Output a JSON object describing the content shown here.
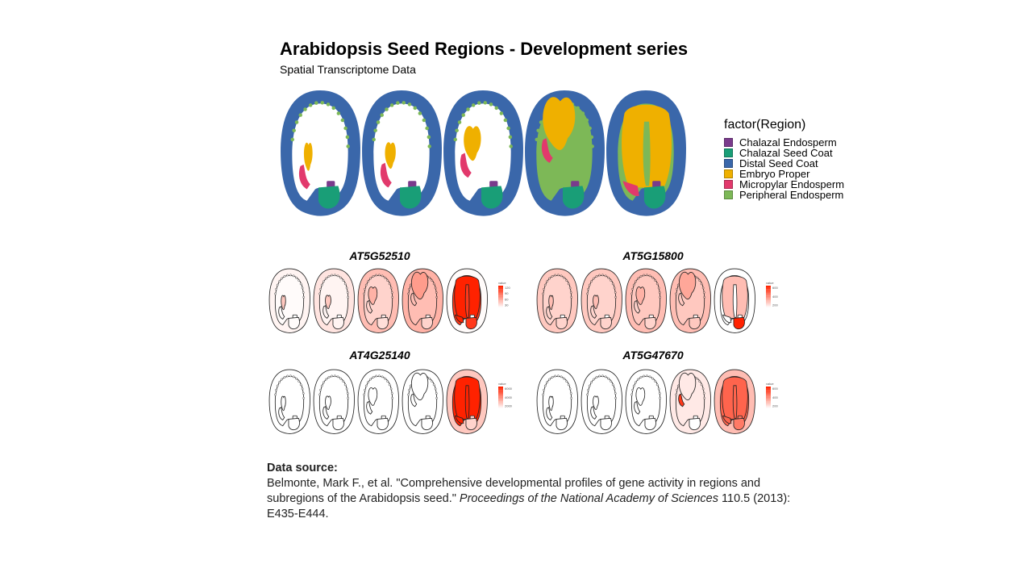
{
  "title": "Arabidopsis Seed Regions - Development series",
  "subtitle": "Spatial Transcriptome  Data",
  "legend": {
    "title": "factor(Region)",
    "items": [
      {
        "label": "Chalazal Endosperm",
        "color": "#7a3b8c"
      },
      {
        "label": "Chalazal Seed Coat",
        "color": "#199e77"
      },
      {
        "label": "Distal Seed Coat",
        "color": "#3a67aa"
      },
      {
        "label": "Embryo Proper",
        "color": "#efb000"
      },
      {
        "label": "Micropylar Endosperm",
        "color": "#e2396c"
      },
      {
        "label": "Peripheral Endosperm",
        "color": "#7db857"
      }
    ]
  },
  "genes": [
    {
      "name": "AT5G52510",
      "colorbar_title": "value",
      "ticks": [
        "120",
        "90",
        "60",
        "30"
      ],
      "levels": [
        [
          0.05,
          0.02,
          0.25,
          0.02,
          0.0,
          0.02
        ],
        [
          0.12,
          0.05,
          0.25,
          0.05,
          0.0,
          0.05
        ],
        [
          0.3,
          0.2,
          0.35,
          0.2,
          0.08,
          0.15
        ],
        [
          0.35,
          0.3,
          0.45,
          0.3,
          0.1,
          0.2
        ],
        [
          0.02,
          0.9,
          1.0,
          1.0,
          0.0,
          0.9
        ]
      ]
    },
    {
      "name": "AT5G15800",
      "colorbar_title": "value",
      "ticks": [
        "600",
        "400",
        "200"
      ],
      "levels": [
        [
          0.25,
          0.2,
          0.3,
          0.2,
          0.0,
          0.2
        ],
        [
          0.25,
          0.2,
          0.3,
          0.2,
          0.0,
          0.2
        ],
        [
          0.3,
          0.25,
          0.35,
          0.2,
          0.05,
          0.2
        ],
        [
          0.3,
          0.25,
          0.4,
          0.25,
          0.05,
          0.25
        ],
        [
          0.0,
          0.0,
          0.3,
          0.0,
          0.0,
          1.0
        ]
      ]
    },
    {
      "name": "AT4G25140",
      "colorbar_title": "value",
      "ticks": [
        "6000",
        "4000",
        "2000"
      ],
      "levels": [
        [
          0.0,
          0.0,
          0.0,
          0.0,
          0.0,
          0.0
        ],
        [
          0.0,
          0.0,
          0.0,
          0.0,
          0.0,
          0.0
        ],
        [
          0.0,
          0.0,
          0.0,
          0.0,
          0.0,
          0.0
        ],
        [
          0.0,
          0.0,
          0.0,
          0.0,
          0.0,
          0.0
        ],
        [
          0.25,
          1.0,
          1.0,
          1.0,
          0.2,
          0.2
        ]
      ]
    },
    {
      "name": "AT5G47670",
      "colorbar_title": "value",
      "ticks": [
        "600",
        "400",
        "200"
      ],
      "levels": [
        [
          0.0,
          0.0,
          0.0,
          0.0,
          0.0,
          0.0
        ],
        [
          0.0,
          0.0,
          0.0,
          0.0,
          0.0,
          0.0
        ],
        [
          0.0,
          0.0,
          0.0,
          0.0,
          0.0,
          0.0
        ],
        [
          0.1,
          0.1,
          0.1,
          0.9,
          0.0,
          0.0
        ],
        [
          0.3,
          0.7,
          0.7,
          0.7,
          0.6,
          0.6
        ]
      ]
    }
  ],
  "source": {
    "heading": "Data source:",
    "line1": "Belmonte, Mark F., et al. \"Comprehensive developmental profiles of gene activity in regions and subregions of the Arabidopsis seed.\" ",
    "journal": "Proceedings of the National Academy of Sciences",
    "line2": " 110.5 (2013): E435-E444."
  }
}
